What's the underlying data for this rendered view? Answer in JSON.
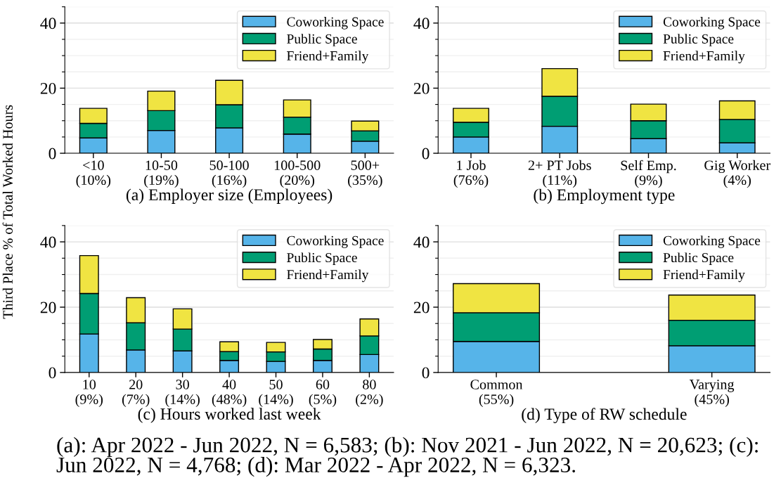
{
  "chart_data": [
    {
      "type": "bar",
      "stacked": true,
      "xlabel": "(a) Employer size (Employees)",
      "ylabel": "Third Place % of Total Worked Hours",
      "categories": [
        "<10\n(10%)",
        "10-50\n(19%)",
        "50-100\n(16%)",
        "100-500\n(20%)",
        "500+\n(35%)"
      ],
      "series": [
        {
          "name": "Coworking Space",
          "color": "#56b4e9",
          "values": [
            4.7,
            7.0,
            7.8,
            5.9,
            3.7
          ]
        },
        {
          "name": "Public Space",
          "color": "#009e73",
          "values": [
            4.5,
            6.1,
            7.1,
            5.2,
            3.2
          ]
        },
        {
          "name": "Friend+Family",
          "color": "#f0e442",
          "values": [
            4.6,
            6.0,
            7.5,
            5.3,
            3.0
          ]
        }
      ],
      "ylim": [
        0,
        45
      ],
      "yticks": [
        0,
        {
          "value": 5,
          "label": null
        },
        {
          "value": 10,
          "label": null
        },
        {
          "value": 15,
          "label": null
        },
        20,
        {
          "value": 25,
          "label": null
        },
        {
          "value": 30,
          "label": null
        },
        {
          "value": 35,
          "label": null
        },
        40,
        {
          "value": 45,
          "label": null
        }
      ],
      "grid": "y",
      "legend": "top right"
    },
    {
      "type": "bar",
      "stacked": true,
      "xlabel": "(b) Employment type",
      "categories": [
        "1 Job\n(76%)",
        "2+ PT Jobs\n(11%)",
        "Self Emp.\n(9%)",
        "Gig Worker\n(4%)"
      ],
      "series": [
        {
          "name": "Coworking Space",
          "color": "#56b4e9",
          "values": [
            5.0,
            8.3,
            4.5,
            3.2
          ]
        },
        {
          "name": "Public Space",
          "color": "#009e73",
          "values": [
            4.5,
            9.2,
            5.5,
            7.2
          ]
        },
        {
          "name": "Friend+Family",
          "color": "#f0e442",
          "values": [
            4.3,
            8.5,
            5.1,
            5.7
          ]
        }
      ],
      "ylim": [
        0,
        45
      ],
      "yticks": [
        0,
        {
          "value": 5,
          "label": null
        },
        {
          "value": 10,
          "label": null
        },
        {
          "value": 15,
          "label": null
        },
        20,
        {
          "value": 25,
          "label": null
        },
        {
          "value": 30,
          "label": null
        },
        {
          "value": 35,
          "label": null
        },
        40,
        {
          "value": 45,
          "label": null
        }
      ],
      "grid": "y",
      "legend": "top right"
    },
    {
      "type": "bar",
      "stacked": true,
      "xlabel": "(c) Hours worked last week",
      "categories": [
        "10\n(9%)",
        "20\n(7%)",
        "30\n(14%)",
        "40\n(48%)",
        "50\n(14%)",
        "60\n(5%)",
        "80\n(2%)"
      ],
      "series": [
        {
          "name": "Coworking Space",
          "color": "#56b4e9",
          "values": [
            11.8,
            6.9,
            6.6,
            3.7,
            3.4,
            3.7,
            5.5
          ]
        },
        {
          "name": "Public Space",
          "color": "#009e73",
          "values": [
            12.4,
            8.3,
            6.7,
            2.7,
            2.9,
            3.5,
            5.7
          ]
        },
        {
          "name": "Friend+Family",
          "color": "#f0e442",
          "values": [
            11.6,
            7.7,
            6.2,
            3.0,
            2.9,
            2.9,
            5.2
          ]
        }
      ],
      "ylim": [
        0,
        45
      ],
      "yticks": [
        0,
        {
          "value": 5,
          "label": null
        },
        {
          "value": 10,
          "label": null
        },
        {
          "value": 15,
          "label": null
        },
        20,
        {
          "value": 25,
          "label": null
        },
        {
          "value": 30,
          "label": null
        },
        {
          "value": 35,
          "label": null
        },
        40,
        {
          "value": 45,
          "label": null
        }
      ],
      "grid": "y",
      "legend": "top right"
    },
    {
      "type": "bar",
      "stacked": true,
      "xlabel": "(d) Type of RW schedule",
      "categories": [
        "Common\n(55%)",
        "Varying\n(45%)"
      ],
      "series": [
        {
          "name": "Coworking Space",
          "color": "#56b4e9",
          "values": [
            9.5,
            8.2
          ]
        },
        {
          "name": "Public Space",
          "color": "#009e73",
          "values": [
            8.8,
            7.8
          ]
        },
        {
          "name": "Friend+Family",
          "color": "#f0e442",
          "values": [
            8.9,
            7.7
          ]
        }
      ],
      "ylim": [
        0,
        45
      ],
      "yticks": [
        0,
        {
          "value": 5,
          "label": null
        },
        {
          "value": 10,
          "label": null
        },
        {
          "value": 15,
          "label": null
        },
        20,
        {
          "value": 25,
          "label": null
        },
        {
          "value": 30,
          "label": null
        },
        {
          "value": 35,
          "label": null
        },
        40,
        {
          "value": 45,
          "label": null
        }
      ],
      "grid": "y",
      "legend": "top right",
      "annotations": [
        "(a): Apr 2022 - Jun 2022, N = 6,583; (b): Nov 2021 - Jun 2022, N = 20,623; (c): Jun 2022, N = 4,768; (d): Mar 2022 - Apr 2022, N = 6,323."
      ]
    }
  ]
}
